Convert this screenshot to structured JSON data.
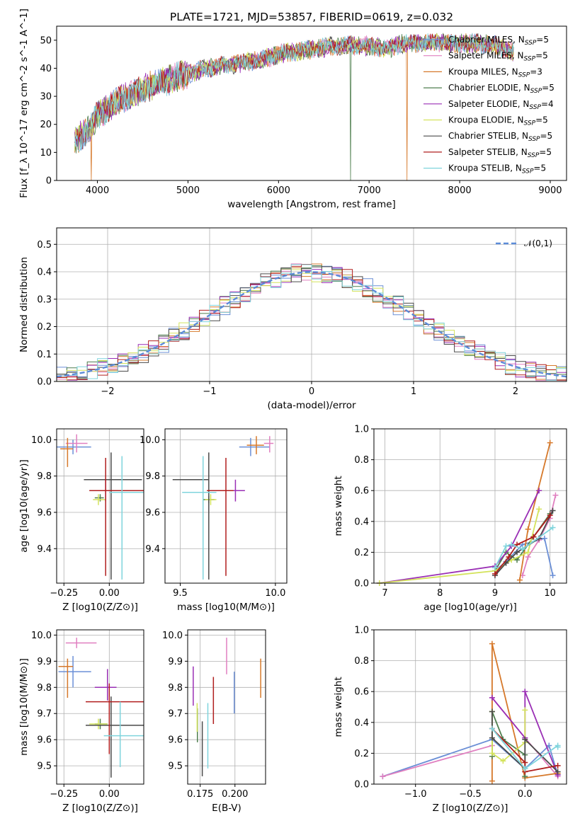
{
  "figure": {
    "title": "PLATE=1721, MJD=53857, FIBERID=0619, z=0.032"
  },
  "series": [
    {
      "name": "Chabrier MILES",
      "nssp": "5",
      "color": "#6b8fd6"
    },
    {
      "name": "Salpeter MILES",
      "nssp": "5",
      "color": "#e07fc0"
    },
    {
      "name": "Kroupa MILES",
      "nssp": "3",
      "color": "#d6792b"
    },
    {
      "name": "Chabrier ELODIE",
      "nssp": "5",
      "color": "#4f7f4f"
    },
    {
      "name": "Salpeter ELODIE",
      "nssp": "4",
      "color": "#9a2fb5"
    },
    {
      "name": "Kroupa ELODIE",
      "nssp": "5",
      "color": "#d4e35c"
    },
    {
      "name": "Chabrier STELIB",
      "nssp": "5",
      "color": "#4a4a4a"
    },
    {
      "name": "Salpeter STELIB",
      "nssp": "5",
      "color": "#b01e1e"
    },
    {
      "name": "Kroupa STELIB",
      "nssp": "5",
      "color": "#7fd4dc"
    }
  ],
  "chart_data": [
    {
      "id": "spectrum",
      "type": "line",
      "xlabel": "wavelength [Angstrom, rest frame]",
      "ylabel": "Flux [f_λ 10^-17 erg cm^-2 s^-1 A^-1]",
      "xlim": [
        3550,
        9180
      ],
      "ylim": [
        0,
        55
      ],
      "xticks": [
        4000,
        5000,
        6000,
        7000,
        8000,
        9000
      ],
      "yticks": [
        0,
        10,
        20,
        30,
        40,
        50
      ],
      "continuum": {
        "x": [
          3750,
          3900,
          4000,
          4200,
          4400,
          4600,
          4800,
          5000,
          5200,
          5400,
          5600,
          5800,
          6000,
          6200,
          6400,
          6600,
          6800,
          7000,
          7200,
          7400,
          7600,
          7800,
          8000,
          8200,
          8400,
          8600
        ],
        "y": [
          14,
          18,
          23,
          28,
          31,
          34,
          36,
          38,
          40,
          41,
          42,
          43,
          45,
          46,
          47,
          48,
          48,
          48,
          47,
          49,
          49,
          49,
          49,
          49,
          48,
          46
        ]
      },
      "dips": [
        {
          "x": 3933,
          "y": 0
        },
        {
          "x": 6795,
          "y": 0
        },
        {
          "x": 7420,
          "y": 0
        }
      ],
      "legend": "upper right"
    },
    {
      "id": "residuals",
      "type": "histogram",
      "xlabel": "(data-model)/error",
      "ylabel": "Normed distribution",
      "xlim": [
        -2.5,
        2.5
      ],
      "ylim": [
        0,
        0.56
      ],
      "xticks": [
        -2,
        -1,
        0,
        1,
        2
      ],
      "xticklabels": [
        "−2",
        "−1",
        "0",
        "1",
        "2"
      ],
      "yticks": [
        0,
        0.1,
        0.2,
        0.3,
        0.4,
        0.5
      ],
      "bin_width": 0.1,
      "reference": {
        "name": "N(0,1)",
        "mean": 0,
        "sigma": 1
      },
      "legend": "upper right"
    },
    {
      "id": "age_vs_Z",
      "type": "errorbar",
      "xlabel": "Z [log10(Z/Z⊙)]",
      "ylabel": "age  [log10(age/yr)]",
      "xlim": [
        -0.29,
        0.19
      ],
      "ylim": [
        9.21,
        10.06
      ],
      "xticks": [
        -0.25,
        0.0
      ],
      "xticklabels": [
        "−0.25",
        "0.00"
      ],
      "yticks": [
        9.4,
        9.6,
        9.8,
        10.0
      ],
      "points": [
        {
          "x": -0.2,
          "y": 9.96,
          "xerr": [
            0.1,
            0.1
          ],
          "yerr": [
            0.04,
            0.04
          ]
        },
        {
          "x": -0.18,
          "y": 9.98,
          "xerr": [
            0.06,
            0.06
          ],
          "yerr": [
            0.05,
            0.05
          ]
        },
        {
          "x": -0.23,
          "y": 9.95,
          "xerr": [
            0.04,
            0.03
          ],
          "yerr": [
            0.1,
            0.06
          ]
        },
        {
          "x": -0.05,
          "y": 9.68,
          "xerr": [
            0.03,
            0.02
          ],
          "yerr": [
            0.02,
            0.02
          ]
        },
        {
          "x": -0.02,
          "y": 9.72,
          "xerr": [
            0.07,
            0.04
          ],
          "yerr": [
            0.06,
            0.06
          ]
        },
        {
          "x": -0.06,
          "y": 9.67,
          "xerr": [
            0.03,
            0.04
          ],
          "yerr": [
            0.03,
            0.03
          ]
        },
        {
          "x": 0.01,
          "y": 9.78,
          "xerr": [
            0.15,
            0.17
          ],
          "yerr": [
            0.55,
            0.15
          ]
        },
        {
          "x": -0.02,
          "y": 9.72,
          "xerr": [
            0.09,
            0.21
          ],
          "yerr": [
            0.47,
            0.18
          ]
        },
        {
          "x": 0.07,
          "y": 9.71,
          "xerr": [
            0.07,
            0.12
          ],
          "yerr": [
            0.48,
            0.2
          ]
        }
      ]
    },
    {
      "id": "age_vs_mass",
      "type": "errorbar",
      "xlabel": "mass [log10(M/M⊙)]",
      "ylabel": "",
      "xlim": [
        9.42,
        10.06
      ],
      "ylim": [
        9.21,
        10.06
      ],
      "xticks": [
        9.5,
        10.0
      ],
      "xticklabels": [
        "9.5",
        "10.0"
      ],
      "yticks": [
        9.4,
        9.6,
        9.8,
        10.0
      ],
      "points": [
        {
          "x": 9.87,
          "y": 9.96,
          "xerr": [
            0.06,
            0.1
          ],
          "yerr": [
            0.05,
            0.05
          ]
        },
        {
          "x": 9.97,
          "y": 9.98,
          "xerr": [
            0.03,
            0.02
          ],
          "yerr": [
            0.05,
            0.04
          ]
        },
        {
          "x": 9.9,
          "y": 9.97,
          "xerr": [
            0.05,
            0.04
          ],
          "yerr": [
            0.05,
            0.05
          ]
        },
        {
          "x": 9.65,
          "y": 9.67,
          "xerr": [
            0.03,
            0.03
          ],
          "yerr": [
            0.02,
            0.02
          ]
        },
        {
          "x": 9.79,
          "y": 9.72,
          "xerr": [
            0.04,
            0.05
          ],
          "yerr": [
            0.06,
            0.06
          ]
        },
        {
          "x": 9.66,
          "y": 9.67,
          "xerr": [
            0.03,
            0.03
          ],
          "yerr": [
            0.03,
            0.03
          ]
        },
        {
          "x": 9.65,
          "y": 9.78,
          "xerr": [
            0.19,
            0.0
          ],
          "yerr": [
            0.55,
            0.15
          ]
        },
        {
          "x": 9.74,
          "y": 9.72,
          "xerr": [
            0.1,
            0.04
          ],
          "yerr": [
            0.47,
            0.18
          ]
        },
        {
          "x": 9.62,
          "y": 9.71,
          "xerr": [
            0.11,
            0.07
          ],
          "yerr": [
            0.48,
            0.2
          ]
        }
      ]
    },
    {
      "id": "mass_weight_vs_age",
      "type": "line",
      "xlabel": "age  [log10(age/yr)]",
      "ylabel": "mass weight",
      "xlim": [
        6.8,
        10.3
      ],
      "ylim": [
        0,
        1.0
      ],
      "xticks": [
        7,
        8,
        9,
        10
      ],
      "yticks": [
        0.0,
        0.2,
        0.4,
        0.6,
        0.8,
        1.0
      ],
      "series": [
        {
          "x": [
            9.0,
            9.2,
            9.5,
            9.9,
            10.05
          ],
          "y": [
            0.08,
            0.14,
            0.25,
            0.29,
            0.05
          ]
        },
        {
          "x": [
            9.5,
            9.6,
            9.8,
            10.0,
            10.1
          ],
          "y": [
            0.05,
            0.17,
            0.28,
            0.42,
            0.57
          ]
        },
        {
          "x": [
            9.45,
            9.6,
            10.0
          ],
          "y": [
            0.02,
            0.35,
            0.91
          ]
        },
        {
          "x": [
            9.0,
            9.2,
            9.4,
            9.7,
            10.0
          ],
          "y": [
            0.08,
            0.2,
            0.15,
            0.3,
            0.45
          ]
        },
        {
          "x": [
            6.9,
            9.0,
            9.3,
            9.8
          ],
          "y": [
            0.0,
            0.11,
            0.24,
            0.6
          ]
        },
        {
          "x": [
            6.9,
            9.0,
            9.3,
            9.6,
            9.8
          ],
          "y": [
            0.0,
            0.08,
            0.15,
            0.2,
            0.48
          ]
        },
        {
          "x": [
            9.0,
            9.2,
            9.4,
            9.8,
            10.05
          ],
          "y": [
            0.05,
            0.13,
            0.2,
            0.29,
            0.47
          ]
        },
        {
          "x": [
            9.0,
            9.25,
            9.4,
            9.7,
            10.0
          ],
          "y": [
            0.06,
            0.17,
            0.25,
            0.3,
            0.44
          ]
        },
        {
          "x": [
            9.0,
            9.2,
            9.3,
            9.5,
            10.05
          ],
          "y": [
            0.1,
            0.24,
            0.25,
            0.22,
            0.36
          ]
        }
      ]
    },
    {
      "id": "mass_vs_Z",
      "type": "errorbar",
      "xlabel": "Z [log10(Z/Z⊙)]",
      "ylabel": "mass [log10(M/M⊙)]",
      "xlim": [
        -0.29,
        0.19
      ],
      "ylim": [
        9.43,
        10.02
      ],
      "xticks": [
        -0.25,
        0.0
      ],
      "xticklabels": [
        "−0.25",
        "0.00"
      ],
      "yticks": [
        9.5,
        9.6,
        9.7,
        9.8,
        9.9,
        10.0
      ],
      "points": [
        {
          "x": -0.2,
          "y": 9.86,
          "xerr": [
            0.08,
            0.1
          ],
          "yerr": [
            0.06,
            0.06
          ]
        },
        {
          "x": -0.18,
          "y": 9.97,
          "xerr": [
            0.06,
            0.11
          ],
          "yerr": [
            0.02,
            0.02
          ]
        },
        {
          "x": -0.23,
          "y": 9.88,
          "xerr": [
            0.05,
            0.03
          ],
          "yerr": [
            0.12,
            0.03
          ]
        },
        {
          "x": -0.05,
          "y": 9.66,
          "xerr": [
            0.03,
            0.04
          ],
          "yerr": [
            0.02,
            0.02
          ]
        },
        {
          "x": -0.01,
          "y": 9.8,
          "xerr": [
            0.07,
            0.05
          ],
          "yerr": [
            0.05,
            0.07
          ]
        },
        {
          "x": -0.06,
          "y": 9.66,
          "xerr": [
            0.05,
            0.05
          ],
          "yerr": [
            0.02,
            0.02
          ]
        },
        {
          "x": 0.01,
          "y": 9.655,
          "xerr": [
            0.14,
            0.18
          ],
          "yerr": [
            0.2,
            0.11
          ]
        },
        {
          "x": 0.0,
          "y": 9.745,
          "xerr": [
            0.13,
            0.25
          ],
          "yerr": [
            0.2,
            0.07
          ]
        },
        {
          "x": 0.06,
          "y": 9.615,
          "xerr": [
            0.09,
            0.13
          ],
          "yerr": [
            0.12,
            0.13
          ]
        }
      ]
    },
    {
      "id": "mass_vs_ebv",
      "type": "errorbar",
      "xlabel": "E(B-V)",
      "ylabel": "",
      "xlim": [
        0.166,
        0.222
      ],
      "ylim": [
        9.43,
        10.02
      ],
      "xticks": [
        0.175,
        0.2
      ],
      "xticklabels": [
        "0.175",
        "0.200"
      ],
      "yticks": [
        9.5,
        9.6,
        9.7,
        9.8,
        9.9,
        10.0
      ],
      "points": [
        {
          "x": 0.1995,
          "y": 9.78,
          "xerr": [
            0,
            0
          ],
          "yerr": [
            0.08,
            0.08
          ]
        },
        {
          "x": 0.194,
          "y": 9.92,
          "xerr": [
            0,
            0
          ],
          "yerr": [
            0.07,
            0.07
          ]
        },
        {
          "x": 0.2185,
          "y": 9.83,
          "xerr": [
            0,
            0
          ],
          "yerr": [
            0.07,
            0.08
          ]
        },
        {
          "x": 0.173,
          "y": 9.64,
          "xerr": [
            0,
            0
          ],
          "yerr": [
            0.05,
            0.08
          ]
        },
        {
          "x": 0.17,
          "y": 9.8,
          "xerr": [
            0,
            0
          ],
          "yerr": [
            0.07,
            0.08
          ]
        },
        {
          "x": 0.1728,
          "y": 9.68,
          "xerr": [
            0,
            0
          ],
          "yerr": [
            0.05,
            0.06
          ]
        },
        {
          "x": 0.1765,
          "y": 9.6,
          "xerr": [
            0,
            0
          ],
          "yerr": [
            0.14,
            0.07
          ]
        },
        {
          "x": 0.1845,
          "y": 9.74,
          "xerr": [
            0,
            0
          ],
          "yerr": [
            0.08,
            0.1
          ]
        },
        {
          "x": 0.1805,
          "y": 9.61,
          "xerr": [
            0,
            0
          ],
          "yerr": [
            0.12,
            0.13
          ]
        }
      ]
    },
    {
      "id": "mass_weight_vs_Z",
      "type": "line",
      "xlabel": "Z [log10(Z/Z⊙)]",
      "ylabel": "mass weight",
      "xlim": [
        -1.38,
        0.38
      ],
      "ylim": [
        0,
        1.0
      ],
      "xticks": [
        -1.0,
        -0.5,
        0.0
      ],
      "xticklabels": [
        "−1.0",
        "−0.5",
        "0.0"
      ],
      "yticks": [
        0.0,
        0.2,
        0.4,
        0.6,
        0.8,
        1.0
      ],
      "series": [
        {
          "x": [
            -1.3,
            -0.3,
            0.0,
            0.22,
            0.3
          ],
          "y": [
            0.05,
            0.29,
            0.1,
            0.25,
            0.06
          ]
        },
        {
          "x": [
            -1.3,
            -0.3,
            -0.3,
            0.0,
            0.3
          ],
          "y": [
            0.05,
            0.25,
            0.56,
            0.3,
            0.05
          ]
        },
        {
          "x": [
            -0.3,
            -0.3,
            0.0,
            0.3
          ],
          "y": [
            0.02,
            0.91,
            0.04,
            0.07
          ]
        },
        {
          "x": [
            -0.3,
            -0.3,
            -0.2,
            0.0,
            0.0
          ],
          "y": [
            0.18,
            0.47,
            0.29,
            0.19,
            0.05
          ]
        },
        {
          "x": [
            -0.3,
            0.0,
            0.0,
            0.3
          ],
          "y": [
            0.56,
            0.3,
            0.6,
            0.06
          ]
        },
        {
          "x": [
            -0.3,
            -0.3,
            -0.2,
            0.0,
            0.0
          ],
          "y": [
            0.47,
            0.2,
            0.15,
            0.27,
            0.48
          ]
        },
        {
          "x": [
            -0.3,
            -0.3,
            0.0,
            0.0,
            0.3
          ],
          "y": [
            0.47,
            0.3,
            0.1,
            0.29,
            0.08
          ]
        },
        {
          "x": [
            -0.3,
            0.0,
            0.0,
            0.3
          ],
          "y": [
            0.36,
            0.14,
            0.08,
            0.12
          ]
        },
        {
          "x": [
            -0.3,
            0.0,
            0.3,
            0.3
          ],
          "y": [
            0.36,
            0.1,
            0.25,
            0.24
          ]
        }
      ]
    }
  ]
}
